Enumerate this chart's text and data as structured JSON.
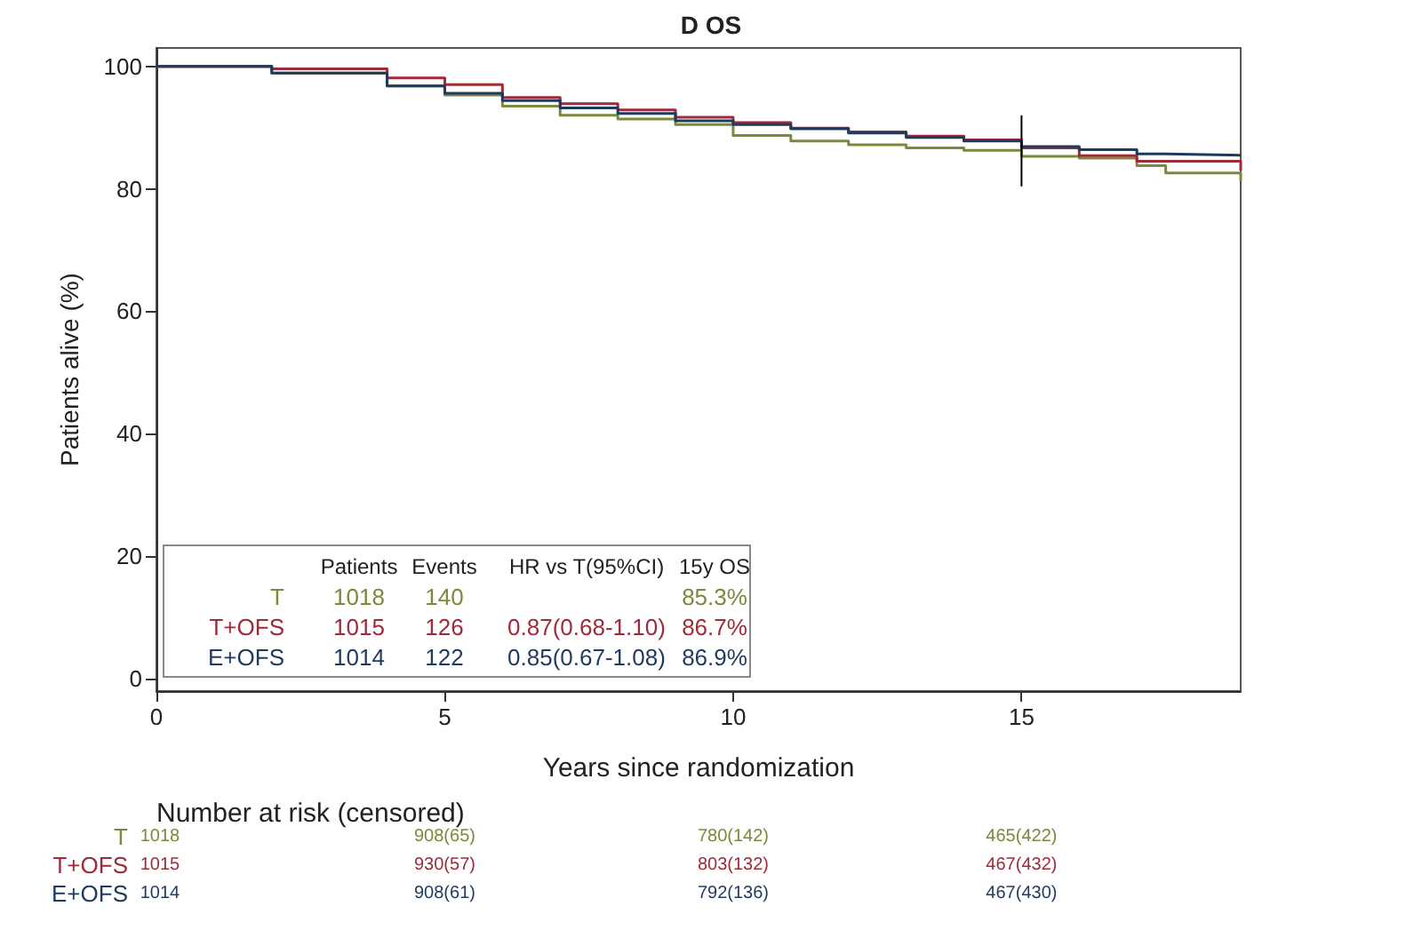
{
  "chart_data": {
    "type": "step",
    "title": "D OS",
    "xlabel": "Years since randomization",
    "ylabel": "Patients alive (%)",
    "xlim": [
      0,
      18.8
    ],
    "xticks": [
      0,
      5,
      10,
      15
    ],
    "ylim": [
      -2,
      103
    ],
    "yticks": [
      0,
      20,
      40,
      60,
      80,
      100
    ],
    "grid": false,
    "legend": "bottom left",
    "marker": "none",
    "line_style": "solid",
    "series": [
      {
        "name": "T",
        "color": "#7a8a3a",
        "x": [
          0,
          2,
          4,
          5,
          6,
          7,
          8,
          9,
          10,
          11,
          12,
          13,
          14,
          15,
          16,
          17,
          17.5,
          18.8
        ],
        "values": [
          100,
          98.9,
          96.8,
          95.3,
          93.5,
          92,
          91.4,
          90.5,
          88.7,
          87.8,
          87.2,
          86.7,
          86.3,
          85.3,
          85,
          83.8,
          82.6,
          81.3
        ]
      },
      {
        "name": "T+OFS",
        "color": "#9e2a3a",
        "x": [
          0,
          2,
          4,
          5,
          6,
          7,
          8,
          9,
          10,
          11,
          12,
          13,
          14,
          15,
          16,
          17,
          18.8
        ],
        "values": [
          100,
          99.6,
          98.1,
          97,
          94.9,
          93.9,
          92.9,
          91.7,
          90.8,
          89.9,
          89.3,
          88.6,
          88,
          86.7,
          85.4,
          84.5,
          83
        ]
      },
      {
        "name": "E+OFS",
        "color": "#1f3a5f",
        "x": [
          0,
          2,
          4,
          5,
          6,
          7,
          8,
          9,
          10,
          11,
          12,
          13,
          14,
          15,
          16,
          17,
          17.5,
          18.8
        ],
        "values": [
          100,
          98.9,
          96.8,
          95.6,
          94.4,
          93.2,
          92.3,
          91.1,
          90.5,
          89.8,
          89.1,
          88.4,
          87.8,
          86.9,
          86.4,
          85.7,
          85.5,
          85.5
        ]
      },
      {
        "type": "line",
        "color": "#000000",
        "x": [
          15,
          15
        ],
        "values": [
          80.4,
          92
        ]
      }
    ],
    "annotations": [
      "Patients\tEvents\tHR vs T(95%CI)\t15y OS",
      "1018\t140\t\t85.3%",
      "1015\t126\t0.87(0.68-1.10)\t86.7%",
      "1014\t122\t0.85(0.67-1.08)\t86.9%",
      "Number at risk (censored)",
      "1018\t908(65)\t780(142)\t465(422)",
      "1015\t930(57)\t803(132)\t467(432)",
      "1014\t908(61)\t792(136)\t467(430)"
    ]
  }
}
